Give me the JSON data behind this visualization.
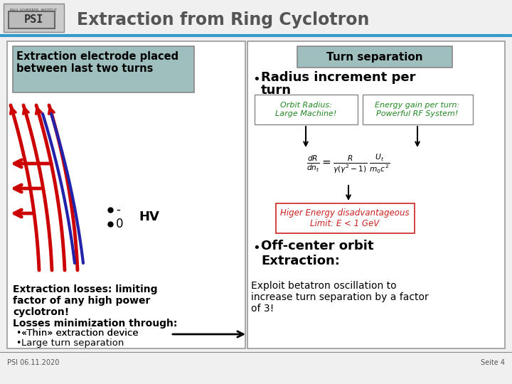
{
  "title": "Extraction from Ring Cyclotron",
  "title_color": "#555555",
  "bg_color": "#f0f0f0",
  "header_line_color": "#3399cc",
  "left_box_header": "Extraction electrode placed\nbetween last two turns",
  "left_box_header_bg": "#9fbfbf",
  "left_box_text1": "Extraction losses: limiting\nfactor of any high power\ncyclotron!",
  "left_box_text2": "Losses minimization through:",
  "left_box_bullet1": "«Thin» extraction device",
  "left_box_bullet2": "Large turn separation",
  "hv_label": "HV",
  "hv_minus": "-",
  "hv_zero": "0",
  "right_box_header": "Turn separation",
  "right_box_header_bg": "#9fbfbf",
  "orbit_radius_label": "Orbit Radius:\nLarge Machine!",
  "energy_gain_label": "Energy gain per turn:\nPowerful RF System!",
  "formula_box_label": "Higer Energy disadvantageous\nLimit: E < 1 GeV",
  "right_text_bottom": "Exploit betatron oscillation to\nincrease turn separation by a factor\nof 3!",
  "footer_left": "PSI 06.11.2020",
  "footer_right": "Seite 4"
}
